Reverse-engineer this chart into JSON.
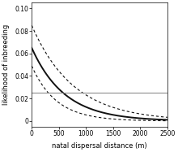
{
  "title": "",
  "xlabel": "natal dispersal distance (m)",
  "ylabel": "likelihood of inbreeding",
  "xlim": [
    0,
    2500
  ],
  "ylim": [
    -0.005,
    0.105
  ],
  "yticks": [
    0.0,
    0.02,
    0.04,
    0.06,
    0.08,
    0.1
  ],
  "ytick_labels": [
    "0",
    "0.02",
    "0.04",
    "0.06",
    "0.08",
    "0.10"
  ],
  "xticks": [
    0,
    500,
    1000,
    1500,
    2000,
    2500
  ],
  "hline_y": 0.025,
  "hline_color": "#888888",
  "fit_color": "#111111",
  "ci_color": "#111111",
  "fit_lw": 1.4,
  "ci_lw": 0.8,
  "background_color": "#ffffff",
  "decay_fit": {
    "a": 0.065,
    "b": 0.00165
  },
  "decay_upper": {
    "a": 0.085,
    "b": 0.0013
  },
  "decay_lower": {
    "a": 0.049,
    "b": 0.0022
  }
}
